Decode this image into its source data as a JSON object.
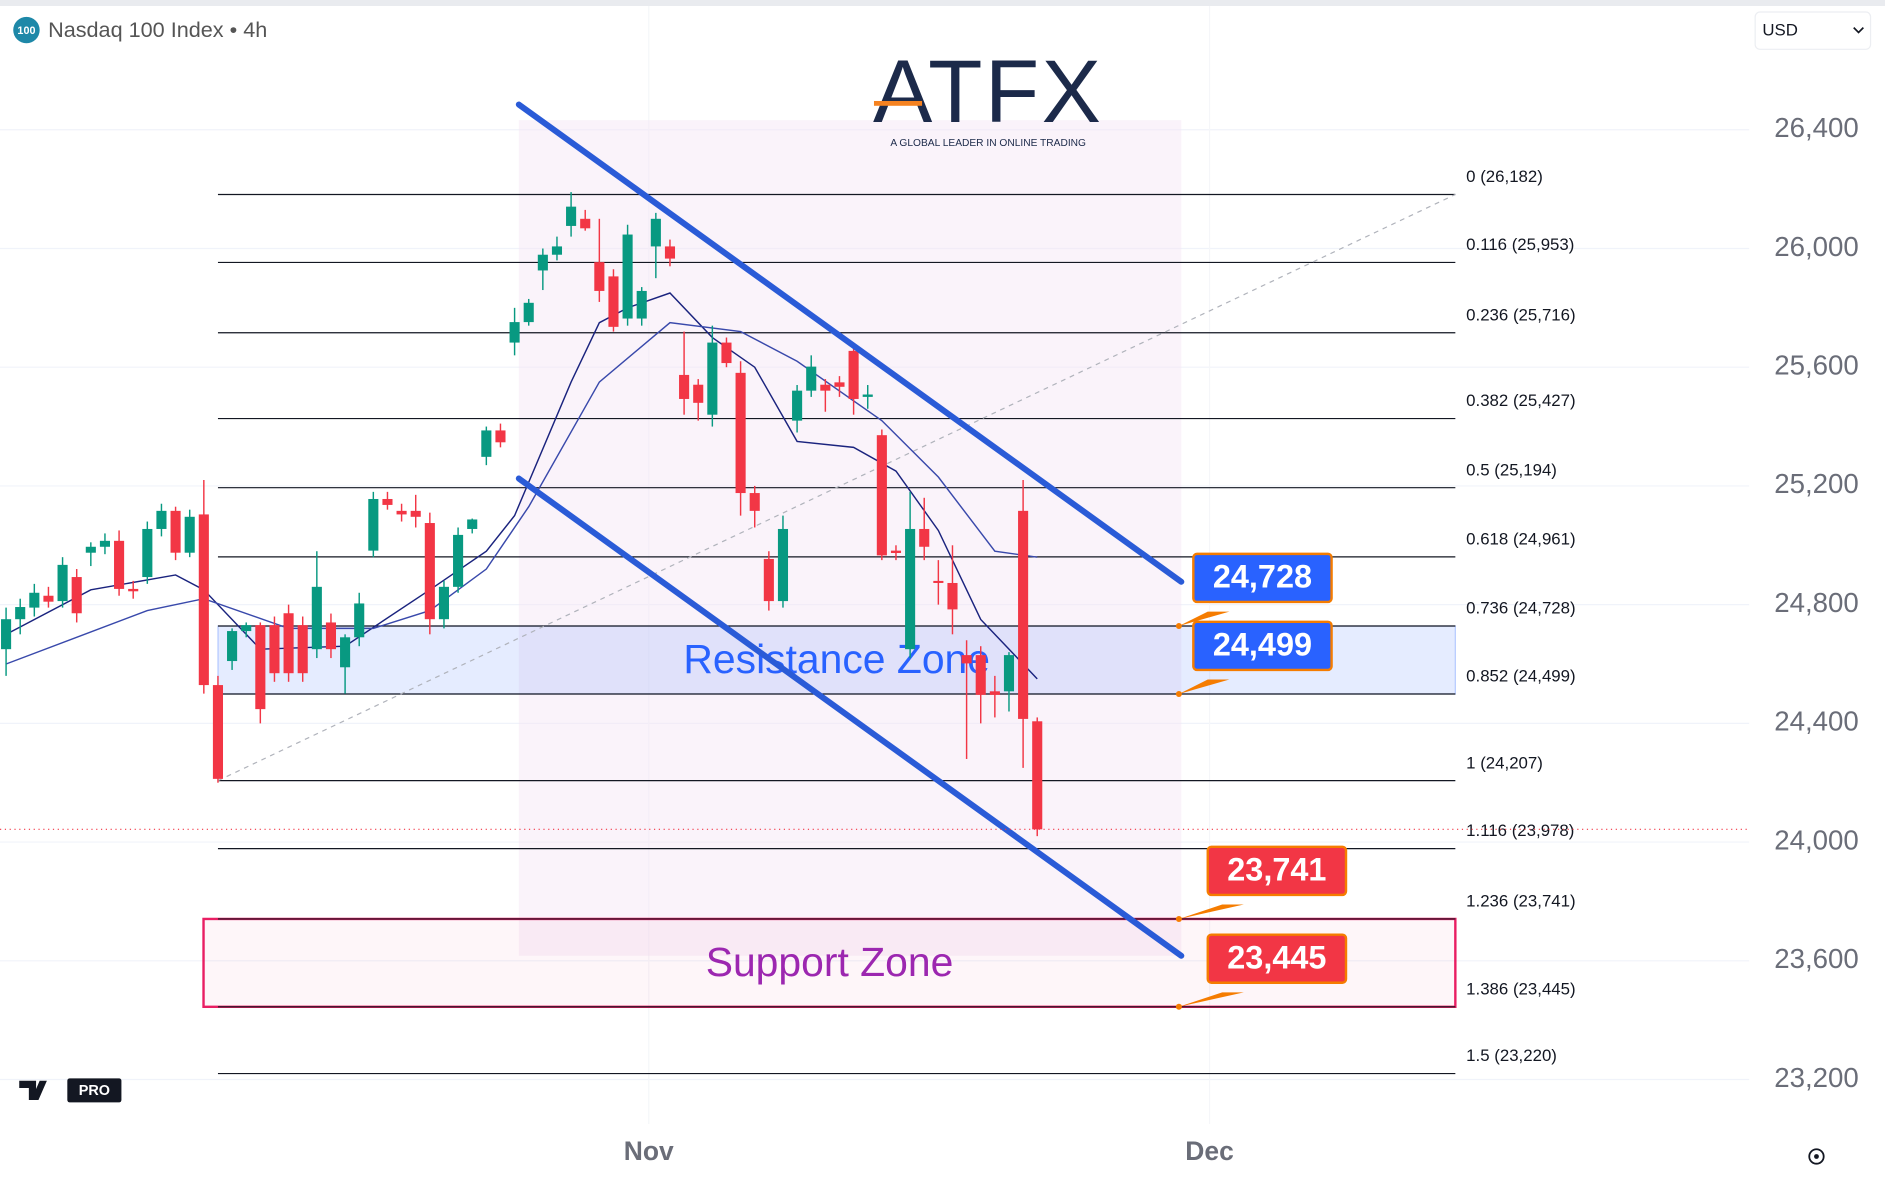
{
  "chart_data": {
    "type": "candlestick",
    "title": "Nasdaq 100 Index • 4h",
    "badge": "100",
    "currency": "USD",
    "brand": {
      "name": "ATFX",
      "tagline": "A GLOBAL LEADER IN ONLINE TRADING"
    },
    "platform_badge": "PRO",
    "up_color": "#089981",
    "down_color": "#f23645",
    "x": [
      0,
      1,
      2,
      3,
      4,
      5,
      6,
      7,
      8,
      9,
      10,
      11,
      12,
      13,
      14,
      15,
      16,
      17,
      18,
      19,
      20,
      21,
      22,
      23,
      24,
      25,
      26,
      27,
      28,
      29,
      30,
      31,
      32,
      33,
      34,
      35,
      36,
      37,
      38,
      39,
      40,
      41,
      42,
      43,
      44,
      45,
      46,
      47,
      48,
      49,
      50,
      51,
      52,
      53,
      54,
      55,
      56,
      57,
      58,
      59,
      60,
      61,
      62,
      63,
      64,
      65,
      66,
      67,
      68,
      69,
      70,
      71,
      72,
      73
    ],
    "open": [
      24650,
      24751,
      24790,
      24830,
      24812,
      24893,
      24975,
      24995,
      25015,
      24853,
      24893,
      25055,
      25116,
      24975,
      25104,
      24529,
      24610,
      24711,
      24731,
      24731,
      24771,
      24731,
      24650,
      24740,
      24589,
      24690,
      24982,
      25156,
      25116,
      25116,
      25075,
      24751,
      24860,
      25055,
      25298,
      25387,
      25683,
      25752,
      25926,
      25979,
      26076,
      26100,
      25954,
      25906,
      25764,
      25764,
      26007,
      26007,
      25574,
      25541,
      25440,
      25683,
      25581,
      25176,
      24954,
      24812,
      25420,
      25521,
      25541,
      25549,
      25655,
      25500,
      25371,
      24982,
      24650,
      25055,
      24880,
      24873,
      24630,
      24630,
      24508,
      24508,
      25116,
      24407
    ],
    "high": [
      24790,
      24820,
      24870,
      24860,
      24960,
      24920,
      25010,
      25040,
      25050,
      24880,
      25080,
      25140,
      25130,
      25120,
      25220,
      24560,
      24720,
      24740,
      24740,
      24760,
      24800,
      24760,
      24980,
      24770,
      24700,
      24840,
      25180,
      25180,
      25140,
      25170,
      25110,
      24880,
      25060,
      25090,
      25400,
      25410,
      25800,
      25830,
      26000,
      26040,
      26190,
      26130,
      26100,
      25930,
      26080,
      25870,
      26120,
      26030,
      25720,
      25560,
      25740,
      25700,
      25620,
      25200,
      24980,
      25100,
      25540,
      25640,
      25560,
      25570,
      25680,
      25540,
      25390,
      25000,
      25180,
      25160,
      24950,
      25000,
      24680,
      24660,
      24560,
      24640,
      25220,
      24420
    ],
    "low": [
      24560,
      24700,
      24760,
      24790,
      24790,
      24740,
      24930,
      24970,
      24830,
      24820,
      24870,
      25030,
      24950,
      24960,
      24500,
      24200,
      24580,
      24690,
      24400,
      24540,
      24540,
      24540,
      24620,
      24620,
      24500,
      24660,
      24960,
      25120,
      25080,
      25060,
      24700,
      24720,
      24840,
      25040,
      25270,
      25330,
      25640,
      25740,
      25860,
      25960,
      26040,
      26060,
      25820,
      25720,
      25740,
      25740,
      25900,
      25940,
      25440,
      25420,
      25400,
      25600,
      25100,
      25060,
      24780,
      24790,
      25380,
      25500,
      25450,
      25500,
      25440,
      25460,
      24950,
      24950,
      24620,
      24950,
      24800,
      24700,
      24280,
      24400,
      24420,
      24440,
      24250,
      24020
    ],
    "close": [
      24751,
      24792,
      24840,
      24810,
      24934,
      24771,
      24995,
      25015,
      24853,
      24845,
      25055,
      25116,
      24975,
      25096,
      24529,
      24213,
      24711,
      24731,
      24448,
      24569,
      24569,
      24569,
      24860,
      24650,
      24690,
      24804,
      25156,
      25136,
      25104,
      25096,
      24751,
      24860,
      25035,
      25087,
      25387,
      25347,
      25752,
      25817,
      25979,
      26007,
      26141,
      26068,
      25857,
      25736,
      26047,
      25857,
      26100,
      25966,
      25493,
      25480,
      25683,
      25614,
      25176,
      25116,
      24812,
      25055,
      25521,
      25602,
      25521,
      25534,
      25493,
      25508,
      24966,
      24974,
      25055,
      24995,
      24873,
      24784,
      24602,
      24496,
      24496,
      24630,
      24415,
      24043
    ],
    "overlays": [
      {
        "color": "#1a237e",
        "x": [
          0,
          6,
          12,
          14,
          18,
          24,
          30,
          34,
          36,
          40,
          42,
          44,
          47,
          50,
          53,
          56,
          60,
          63,
          66,
          69,
          72,
          73
        ],
        "values": [
          24700,
          24850,
          24900,
          24850,
          24650,
          24660,
          24850,
          24980,
          25100,
          25550,
          25750,
          25800,
          25850,
          25700,
          25600,
          25350,
          25330,
          25250,
          25050,
          24750,
          24600,
          24550
        ]
      },
      {
        "color": "#3949ab",
        "x": [
          0,
          10,
          14,
          20,
          26,
          30,
          34,
          37,
          42,
          47,
          52,
          56,
          62,
          66,
          70,
          73
        ],
        "values": [
          24600,
          24780,
          24820,
          24720,
          24720,
          24780,
          24920,
          25130,
          25550,
          25750,
          25720,
          25620,
          25420,
          25230,
          24980,
          24960
        ]
      }
    ],
    "xlim": [
      -0.43,
      123.4
    ],
    "xticks": [
      {
        "value": 45.5,
        "label": "Nov"
      },
      {
        "value": 85.2,
        "label": "Dec"
      }
    ],
    "ylim": [
      23050,
      26817
    ],
    "yticks": [
      {
        "value": 23200,
        "label": "23,200"
      },
      {
        "value": 23600,
        "label": "23,600"
      },
      {
        "value": 24000,
        "label": "24,000"
      },
      {
        "value": 24400,
        "label": "24,400"
      },
      {
        "value": 24800,
        "label": "24,800"
      },
      {
        "value": 25200,
        "label": "25,200"
      },
      {
        "value": 25600,
        "label": "25,600"
      },
      {
        "value": 26000,
        "label": "26,000"
      },
      {
        "value": 26400,
        "label": "26,400"
      }
    ],
    "grid": true,
    "fibonacci": {
      "x": [
        15,
        102.6
      ],
      "levels": [
        {
          "label": "0 (26,182)",
          "value": 26182
        },
        {
          "label": "0.116 (25,953)",
          "value": 25953
        },
        {
          "label": "0.236 (25,716)",
          "value": 25716
        },
        {
          "label": "0.382 (25,427)",
          "value": 25427
        },
        {
          "label": "0.5 (25,194)",
          "value": 25194
        },
        {
          "label": "0.618 (24,961)",
          "value": 24961
        },
        {
          "label": "0.736 (24,728)",
          "value": 24728
        },
        {
          "label": "0.852 (24,499)",
          "value": 24499
        },
        {
          "label": "1 (24,207)",
          "value": 24207
        },
        {
          "label": "1.116 (23,978)",
          "value": 23978
        },
        {
          "label": "1.236 (23,741)",
          "value": 23741
        },
        {
          "label": "1.386 (23,445)",
          "value": 23445
        },
        {
          "label": "1.5 (23,220)",
          "value": 23220
        }
      ]
    },
    "channel": {
      "color": "#2a5bd7",
      "upper": {
        "x": [
          36.3,
          83.2
        ],
        "values": [
          26485,
          24877
        ]
      },
      "lower": {
        "x": [
          36.3,
          83.2
        ],
        "values": [
          25225,
          23617
        ]
      }
    },
    "zones": [
      {
        "label": "Resistance Zone",
        "low": 24499,
        "high": 24728,
        "color": "#2962ff"
      },
      {
        "label": "Support Zone",
        "low": 23445,
        "high": 23741,
        "color": "#e91e63",
        "text_color": "#9c27b0"
      }
    ],
    "price_tags": [
      {
        "value": 24728,
        "label": "24,728",
        "color": "#2962ff"
      },
      {
        "value": 24499,
        "label": "24,499",
        "color": "#2962ff"
      },
      {
        "value": 23741,
        "label": "23,741",
        "color": "#f23645"
      },
      {
        "value": 23445,
        "label": "23,445",
        "color": "#f23645"
      }
    ]
  }
}
